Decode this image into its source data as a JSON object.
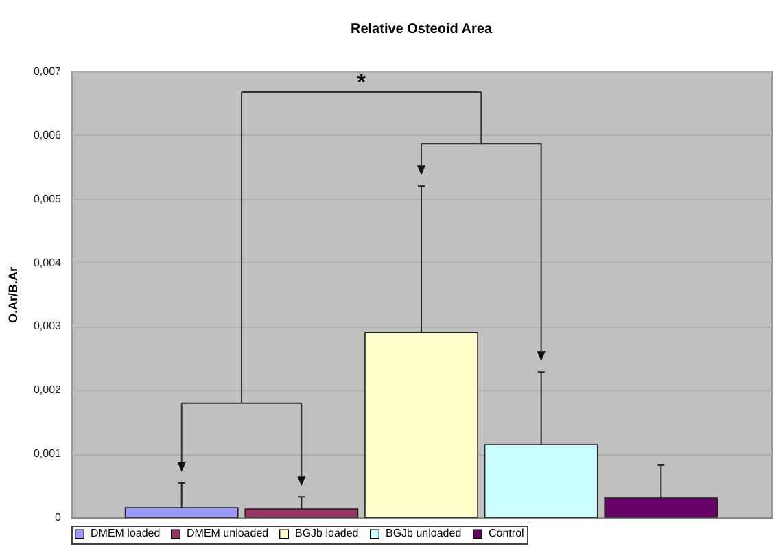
{
  "chart_data": {
    "type": "bar",
    "title": "Relative Osteoid Area",
    "ylabel": "O.Ar/B.Ar",
    "categories": [
      null,
      null,
      null,
      null,
      null
    ],
    "series": [
      {
        "name": "DMEM loaded",
        "color": "#9999ff",
        "values": [
          0.00015,
          null,
          null,
          null,
          null
        ],
        "errors": [
          [
            0.00015,
            0.00054
          ],
          null,
          null,
          null,
          null
        ]
      },
      {
        "name": "DMEM unloaded",
        "color": "#993366",
        "values": [
          null,
          0.00013,
          null,
          null,
          null
        ],
        "errors": [
          null,
          [
            0.00013,
            0.00032
          ],
          null,
          null,
          null
        ]
      },
      {
        "name": "BGJb loaded",
        "color": "#ffffcc",
        "values": [
          null,
          null,
          0.0029,
          null,
          null
        ],
        "errors": [
          null,
          null,
          [
            0.0029,
            0.0052
          ],
          null,
          null
        ]
      },
      {
        "name": "BGJb unloaded",
        "color": "#ccffff",
        "values": [
          null,
          null,
          null,
          0.00114,
          null
        ],
        "errors": [
          null,
          null,
          null,
          [
            0.00114,
            0.00228
          ],
          null
        ]
      },
      {
        "name": "Control",
        "color": "#660066",
        "values": [
          null,
          null,
          null,
          null,
          0.0003
        ],
        "errors": [
          null,
          null,
          null,
          null,
          [
            0.0003,
            0.00082
          ]
        ]
      }
    ],
    "ylim": [
      0,
      0.007
    ],
    "yticks": [
      0,
      {
        "value": 0.001,
        "label": "0,001"
      },
      {
        "value": 0.002,
        "label": "0,002"
      },
      {
        "value": 0.003,
        "label": "0,003"
      },
      {
        "value": 0.004,
        "label": "0,004"
      },
      {
        "value": 0.005,
        "label": "0,005"
      },
      {
        "value": 0.006,
        "label": "0,006"
      },
      {
        "value": 0.007,
        "label": "0,007"
      }
    ],
    "grid": "y",
    "legend": "bottom",
    "annotations": [
      "*"
    ]
  }
}
